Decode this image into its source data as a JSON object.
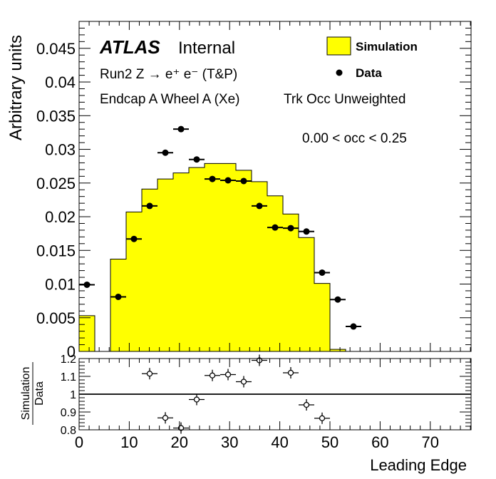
{
  "chart_data": [
    {
      "type": "bar",
      "title": "",
      "xlabel": "Leading Edge",
      "ylabel": "Arbitrary units",
      "xlim": [
        0,
        78.125
      ],
      "ylim": [
        0,
        0.049
      ],
      "x_ticks": [
        "0",
        "10",
        "20",
        "30",
        "40",
        "50",
        "60",
        "70"
      ],
      "y_ticks": [
        "0",
        "0.005",
        "0.01",
        "0.015",
        "0.02",
        "0.025",
        "0.03",
        "0.035",
        "0.04",
        "0.045"
      ],
      "y_tick_values": [
        0,
        0.005,
        0.01,
        0.015,
        0.02,
        0.025,
        0.03,
        0.035,
        0.04,
        0.045
      ],
      "grid": false,
      "legend_position": "top-right",
      "annotations": {
        "atlas": "ATLAS",
        "internal": "Internal",
        "run": "Run2 Z → e⁺ e⁻ (T&P)",
        "region": "Endcap A Wheel A (Xe)",
        "weighting": "Trk Occ Unweighted",
        "cut": "0.00 < occ < 0.25"
      },
      "bin_width": 3.125,
      "series": [
        {
          "name": "Simulation",
          "style": "filled histogram",
          "color": "#ffff00",
          "bin_lows": [
            0,
            3.125,
            6.25,
            9.375,
            12.5,
            15.625,
            18.75,
            21.875,
            25,
            28.125,
            31.25,
            34.375,
            37.5,
            40.625,
            43.75,
            46.875,
            50
          ],
          "values": [
            0.0053,
            0.0,
            0.0137,
            0.0207,
            0.0241,
            0.0256,
            0.0265,
            0.0273,
            0.0279,
            0.0279,
            0.0269,
            0.0252,
            0.0231,
            0.0204,
            0.0169,
            0.0101,
            0.0003
          ]
        },
        {
          "name": "Data",
          "style": "points with x error bars",
          "color": "#000000",
          "x": [
            1.5625,
            7.8125,
            10.9375,
            14.0625,
            17.1875,
            20.3125,
            23.4375,
            26.5625,
            29.6875,
            32.8125,
            35.9375,
            39.0625,
            42.1875,
            45.3125,
            48.4375,
            51.5625,
            54.6875
          ],
          "values": [
            0.0099,
            0.0081,
            0.0167,
            0.0216,
            0.0295,
            0.033,
            0.0285,
            0.0256,
            0.0254,
            0.0253,
            0.0216,
            0.0184,
            0.0183,
            0.0178,
            0.0117,
            0.0077,
            0.0037
          ]
        }
      ]
    },
    {
      "type": "scatter",
      "title": "",
      "xlabel": "Leading Edge",
      "ylabel_numerator": "Simulation",
      "ylabel_denominator": "Data",
      "xlim": [
        0,
        78.125
      ],
      "ylim": [
        0.8,
        1.2
      ],
      "x_ticks": [
        "0",
        "10",
        "20",
        "30",
        "40",
        "50",
        "60",
        "70"
      ],
      "y_ticks": [
        "0.8",
        "0.9",
        "1",
        "1.1",
        "1.2"
      ],
      "y_tick_values": [
        0.8,
        0.9,
        1.0,
        1.1,
        1.2
      ],
      "reference_line": 1.0,
      "grid": false,
      "series": [
        {
          "name": "",
          "style": "open markers with x error bars",
          "color": "#000000",
          "x": [
            14.0625,
            17.1875,
            20.3125,
            23.4375,
            26.5625,
            29.6875,
            32.8125,
            35.9375,
            42.1875,
            45.3125,
            48.4375
          ],
          "values": [
            1.115,
            0.867,
            0.81,
            0.97,
            1.105,
            1.11,
            1.07,
            1.19,
            1.12,
            0.94,
            0.865
          ]
        }
      ]
    }
  ]
}
